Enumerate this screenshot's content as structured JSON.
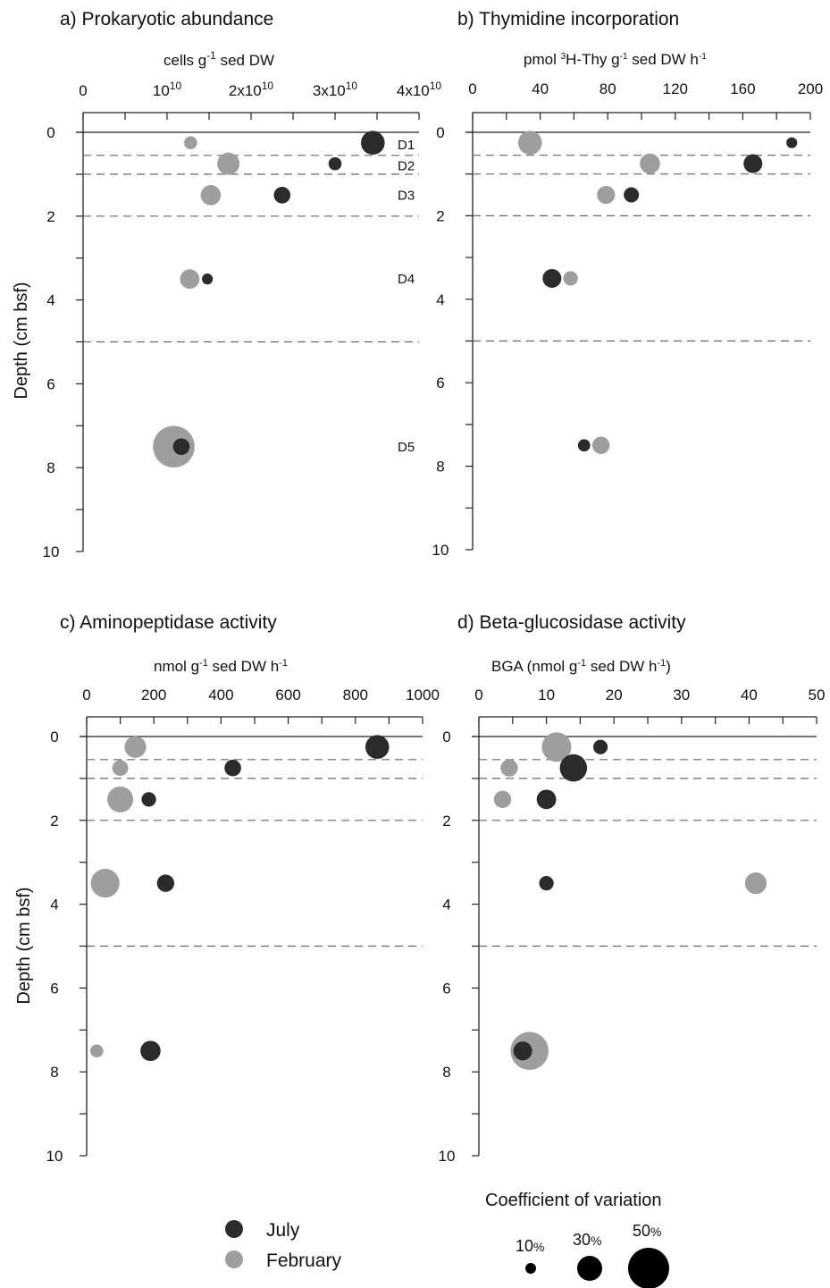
{
  "colors": {
    "july": "#2b2b2b",
    "february": "#9e9e9e",
    "axis": "#222222",
    "separator": "#666666"
  },
  "y_axis_title": "Depth (cm bsf)",
  "depth_separators": [
    0.55,
    1.0,
    2.0,
    5.0
  ],
  "zones": [
    "D1",
    "D2",
    "D3",
    "D4",
    "D5"
  ],
  "chart_data": [
    {
      "type": "scatter",
      "title": "a) Prokaryotic abundance",
      "xlabel": "cells g-1 sed DW",
      "ylabel": "Depth (cm bsf)",
      "xlim": [
        0,
        40000000000
      ],
      "ylim": [
        10,
        0
      ],
      "x_ticks": [
        0,
        10000000000,
        20000000000,
        30000000000,
        40000000000
      ],
      "x_tick_labels": [
        "0",
        "10^10",
        "2x10^10",
        "3x10^10",
        "4x10^10"
      ],
      "y_ticks": [
        0,
        2,
        4,
        6,
        8,
        10
      ],
      "zone_labels": [
        {
          "label": "D1",
          "depth": 0.3
        },
        {
          "label": "D2",
          "depth": 0.8
        },
        {
          "label": "D3",
          "depth": 1.5
        },
        {
          "label": "D4",
          "depth": 3.5
        },
        {
          "label": "D5",
          "depth": 7.5
        }
      ],
      "series": [
        {
          "name": "July",
          "points": [
            {
              "x": 34500000000,
              "depth": 0.25,
              "cv": 25
            },
            {
              "x": 30000000000,
              "depth": 0.75,
              "cv": 10
            },
            {
              "x": 23700000000,
              "depth": 1.5,
              "cv": 15
            },
            {
              "x": 14800000000,
              "depth": 3.5,
              "cv": 7
            },
            {
              "x": 11700000000,
              "depth": 7.5,
              "cv": 15
            }
          ]
        },
        {
          "name": "February",
          "points": [
            {
              "x": 12800000000,
              "depth": 0.25,
              "cv": 10
            },
            {
              "x": 17300000000,
              "depth": 0.75,
              "cv": 23
            },
            {
              "x": 15200000000,
              "depth": 1.5,
              "cv": 20
            },
            {
              "x": 12700000000,
              "depth": 3.5,
              "cv": 19
            },
            {
              "x": 10800000000,
              "depth": 7.5,
              "cv": 50
            }
          ]
        }
      ]
    },
    {
      "type": "scatter",
      "title": "b) Thymidine incorporation",
      "xlabel": "pmol 3H-Thy g-1 sed DW h-1",
      "ylabel": "",
      "xlim": [
        0,
        200
      ],
      "ylim": [
        10,
        0
      ],
      "x_ticks": [
        0,
        40,
        80,
        120,
        160,
        200
      ],
      "x_tick_labels": [
        "0",
        "40",
        "80",
        "120",
        "160",
        "200"
      ],
      "y_ticks": [
        0,
        2,
        4,
        6,
        8,
        10
      ],
      "series": [
        {
          "name": "July",
          "points": [
            {
              "x": 189,
              "depth": 0.25,
              "cv": 7
            },
            {
              "x": 166,
              "depth": 0.75,
              "cv": 18
            },
            {
              "x": 94,
              "depth": 1.5,
              "cv": 13
            },
            {
              "x": 47,
              "depth": 3.5,
              "cv": 18
            },
            {
              "x": 66,
              "depth": 7.5,
              "cv": 9
            }
          ]
        },
        {
          "name": "February",
          "points": [
            {
              "x": 34,
              "depth": 0.25,
              "cv": 25
            },
            {
              "x": 105,
              "depth": 0.75,
              "cv": 20
            },
            {
              "x": 79,
              "depth": 1.5,
              "cv": 17
            },
            {
              "x": 58,
              "depth": 3.5,
              "cv": 12
            },
            {
              "x": 76,
              "depth": 7.5,
              "cv": 16
            }
          ]
        }
      ]
    },
    {
      "type": "scatter",
      "title": "c) Aminopeptidase activity",
      "xlabel": "nmol g-1 sed DW h-1",
      "ylabel": "Depth (cm bsf)",
      "xlim": [
        0,
        1000
      ],
      "ylim": [
        10,
        0
      ],
      "x_ticks": [
        0,
        200,
        400,
        600,
        800,
        1000
      ],
      "x_tick_labels": [
        "0",
        "200",
        "400",
        "600",
        "800",
        "1000"
      ],
      "y_ticks": [
        0,
        2,
        4,
        6,
        8,
        10
      ],
      "series": [
        {
          "name": "July",
          "points": [
            {
              "x": 865,
              "depth": 0.25,
              "cv": 25
            },
            {
              "x": 435,
              "depth": 0.75,
              "cv": 15
            },
            {
              "x": 185,
              "depth": 1.5,
              "cv": 12
            },
            {
              "x": 235,
              "depth": 3.5,
              "cv": 16
            },
            {
              "x": 190,
              "depth": 7.5,
              "cv": 20
            }
          ]
        },
        {
          "name": "February",
          "points": [
            {
              "x": 145,
              "depth": 0.25,
              "cv": 22
            },
            {
              "x": 100,
              "depth": 0.75,
              "cv": 14
            },
            {
              "x": 100,
              "depth": 1.5,
              "cv": 28
            },
            {
              "x": 55,
              "depth": 3.5,
              "cv": 32
            },
            {
              "x": 30,
              "depth": 7.5,
              "cv": 10
            }
          ]
        }
      ]
    },
    {
      "type": "scatter",
      "title": "d) Beta-glucosidase activity",
      "xlabel": "BGA (nmol g-1 sed DW h-1)",
      "ylabel": "",
      "xlim": [
        0,
        50
      ],
      "ylim": [
        10,
        0
      ],
      "x_ticks": [
        0,
        10,
        20,
        30,
        40,
        50
      ],
      "x_tick_labels": [
        "0",
        "10",
        "20",
        "30",
        "40",
        "50"
      ],
      "y_ticks": [
        0,
        2,
        4,
        6,
        8,
        10
      ],
      "series": [
        {
          "name": "July",
          "points": [
            {
              "x": 18,
              "depth": 0.25,
              "cv": 12
            },
            {
              "x": 14,
              "depth": 0.75,
              "cv": 30
            },
            {
              "x": 10,
              "depth": 1.5,
              "cv": 19
            },
            {
              "x": 10,
              "depth": 3.5,
              "cv": 12
            },
            {
              "x": 6.5,
              "depth": 7.5,
              "cv": 18
            }
          ]
        },
        {
          "name": "February",
          "points": [
            {
              "x": 11.5,
              "depth": 0.25,
              "cv": 33
            },
            {
              "x": 4.5,
              "depth": 0.75,
              "cv": 16
            },
            {
              "x": 3.5,
              "depth": 1.5,
              "cv": 16
            },
            {
              "x": 41,
              "depth": 3.5,
              "cv": 22
            },
            {
              "x": 7.5,
              "depth": 7.5,
              "cv": 45
            }
          ]
        }
      ]
    }
  ],
  "legend": {
    "entries": [
      {
        "name": "July",
        "color": "#2b2b2b"
      },
      {
        "name": "February",
        "color": "#9e9e9e"
      }
    ]
  },
  "cv_legend": {
    "title": "Coefficient of variation",
    "sizes": [
      {
        "value": 10,
        "label": "10",
        "unit": "%"
      },
      {
        "value": 30,
        "label": "30",
        "unit": "%"
      },
      {
        "value": 50,
        "label": "50",
        "unit": "%"
      }
    ]
  }
}
